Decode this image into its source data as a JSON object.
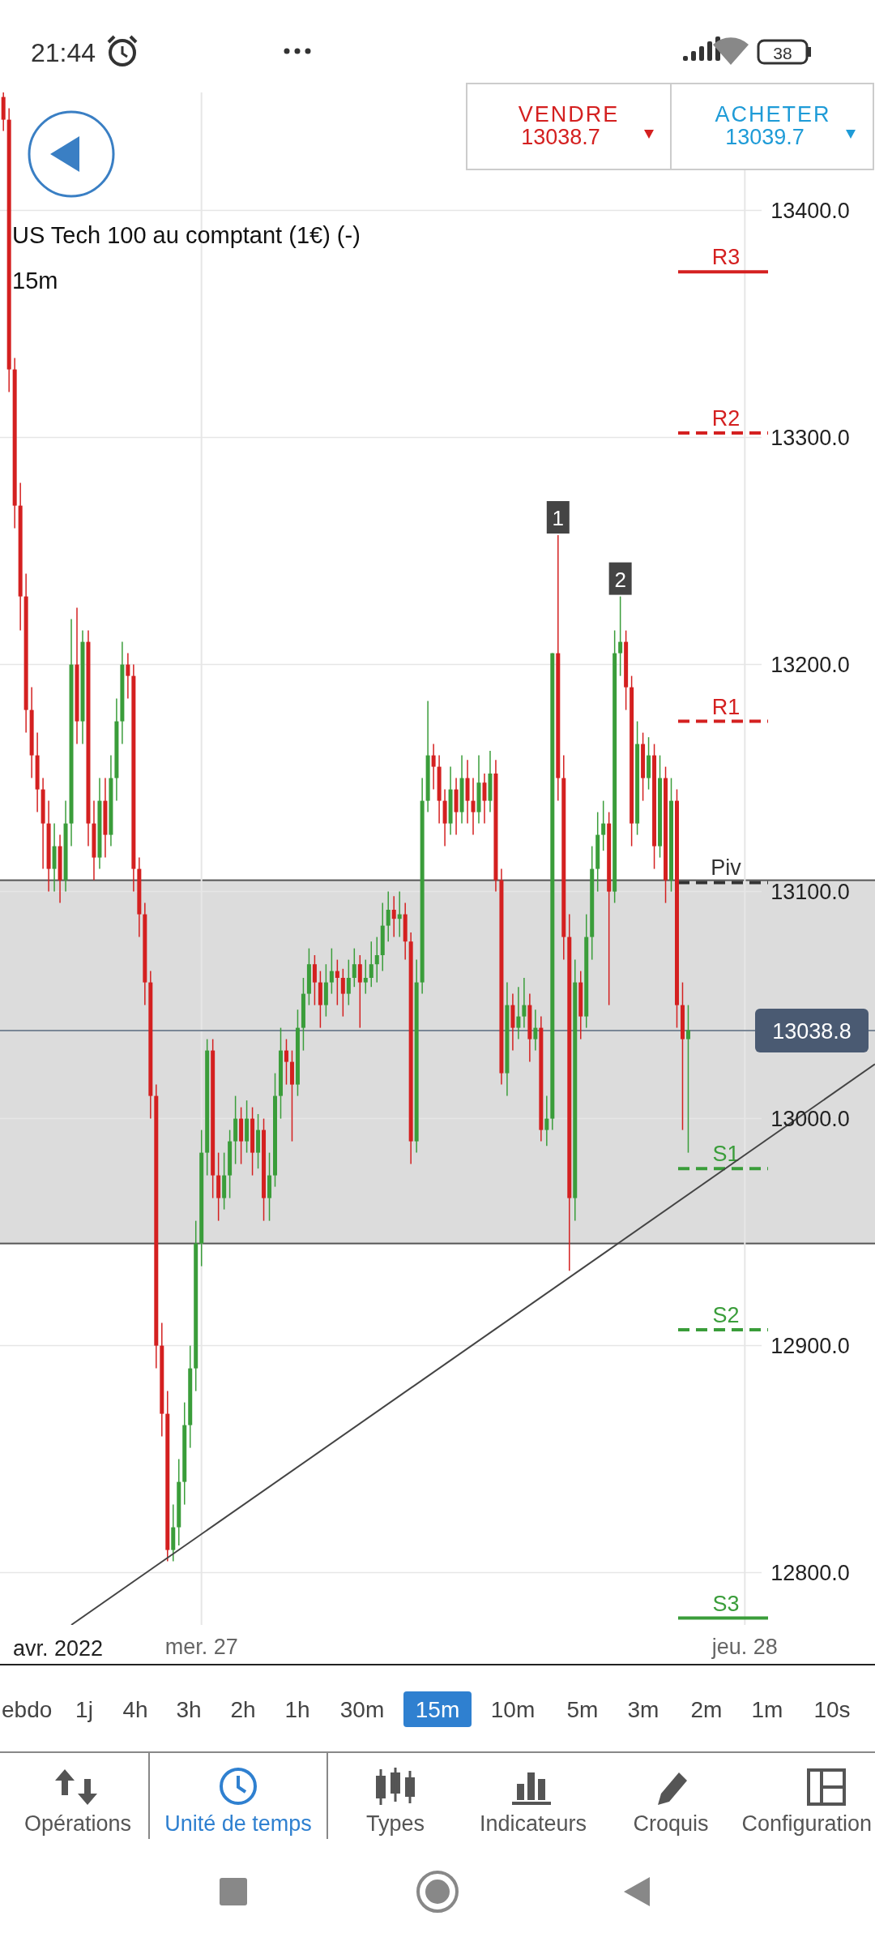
{
  "chart_data": {
    "type": "candlestick",
    "title": "US Tech 100 au comptant (1€) (-)",
    "subtitle": "15m",
    "x": [
      "2022-04-26T15:15",
      "2022-04-26T15:30",
      "2022-04-26T15:45",
      "2022-04-26T16:00",
      "2022-04-26T16:15",
      "2022-04-26T16:30",
      "2022-04-26T16:45",
      "2022-04-26T17:00",
      "2022-04-26T17:15",
      "2022-04-26T17:30",
      "2022-04-26T17:45",
      "2022-04-26T18:00",
      "2022-04-26T18:15",
      "2022-04-26T18:30",
      "2022-04-26T18:45",
      "2022-04-26T19:00",
      "2022-04-26T19:15",
      "2022-04-26T19:30",
      "2022-04-26T19:45",
      "2022-04-26T20:00",
      "2022-04-26T20:15",
      "2022-04-26T20:30",
      "2022-04-26T20:45",
      "2022-04-26T21:00",
      "2022-04-26T21:15",
      "2022-04-26T21:30",
      "2022-04-26T21:45",
      "2022-04-26T22:00",
      "2022-04-26T22:15",
      "2022-04-26T22:30",
      "2022-04-26T22:45",
      "2022-04-26T23:00",
      "2022-04-26T23:15",
      "2022-04-26T23:30",
      "2022-04-26T23:45",
      "2022-04-27T00:00",
      "2022-04-27T00:15",
      "2022-04-27T00:30",
      "2022-04-27T00:45",
      "2022-04-27T01:00",
      "2022-04-27T01:15",
      "2022-04-27T01:30",
      "2022-04-27T01:45",
      "2022-04-27T02:00",
      "2022-04-27T02:15",
      "2022-04-27T02:30",
      "2022-04-27T02:45",
      "2022-04-27T03:00",
      "2022-04-27T03:15",
      "2022-04-27T03:30",
      "2022-04-27T03:45",
      "2022-04-27T04:00",
      "2022-04-27T04:15",
      "2022-04-27T04:30",
      "2022-04-27T04:45",
      "2022-04-27T05:00",
      "2022-04-27T05:15",
      "2022-04-27T05:30",
      "2022-04-27T05:45",
      "2022-04-27T06:00",
      "2022-04-27T06:15",
      "2022-04-27T06:30",
      "2022-04-27T06:45",
      "2022-04-27T07:00",
      "2022-04-27T07:15",
      "2022-04-27T07:30",
      "2022-04-27T07:45",
      "2022-04-27T08:00",
      "2022-04-27T08:15",
      "2022-04-27T08:30",
      "2022-04-27T08:45",
      "2022-04-27T09:00",
      "2022-04-27T09:15",
      "2022-04-27T09:30",
      "2022-04-27T09:45",
      "2022-04-27T10:00",
      "2022-04-27T10:15",
      "2022-04-27T10:30",
      "2022-04-27T10:45",
      "2022-04-27T11:00",
      "2022-04-27T11:15",
      "2022-04-27T11:30",
      "2022-04-27T11:45",
      "2022-04-27T12:00",
      "2022-04-27T12:15",
      "2022-04-27T12:30",
      "2022-04-27T12:45",
      "2022-04-27T13:00",
      "2022-04-27T13:15",
      "2022-04-27T13:30",
      "2022-04-27T13:45",
      "2022-04-27T14:00",
      "2022-04-27T14:15",
      "2022-04-27T14:30",
      "2022-04-27T14:45",
      "2022-04-27T15:00",
      "2022-04-27T15:15",
      "2022-04-27T15:30",
      "2022-04-27T15:45",
      "2022-04-27T16:00",
      "2022-04-27T16:15",
      "2022-04-27T16:30",
      "2022-04-27T16:45",
      "2022-04-27T17:00",
      "2022-04-27T17:15",
      "2022-04-27T17:30",
      "2022-04-27T17:45",
      "2022-04-27T18:00",
      "2022-04-27T18:15",
      "2022-04-27T18:30",
      "2022-04-27T18:45",
      "2022-04-27T19:00",
      "2022-04-27T19:15",
      "2022-04-27T19:30",
      "2022-04-27T19:45",
      "2022-04-27T20:00",
      "2022-04-27T20:15",
      "2022-04-27T20:30",
      "2022-04-27T20:45",
      "2022-04-27T21:00",
      "2022-04-27T21:15",
      "2022-04-27T21:30"
    ],
    "ohlc": [
      [
        13450,
        13452,
        13435,
        13440
      ],
      [
        13440,
        13445,
        13320,
        13330
      ],
      [
        13330,
        13335,
        13260,
        13270
      ],
      [
        13270,
        13280,
        13215,
        13230
      ],
      [
        13230,
        13240,
        13170,
        13180
      ],
      [
        13180,
        13190,
        13150,
        13160
      ],
      [
        13160,
        13170,
        13135,
        13145
      ],
      [
        13145,
        13150,
        13110,
        13130
      ],
      [
        13130,
        13140,
        13100,
        13110
      ],
      [
        13110,
        13130,
        13100,
        13120
      ],
      [
        13120,
        13125,
        13095,
        13105
      ],
      [
        13105,
        13140,
        13100,
        13130
      ],
      [
        13130,
        13220,
        13120,
        13200
      ],
      [
        13200,
        13225,
        13165,
        13175
      ],
      [
        13175,
        13215,
        13165,
        13210
      ],
      [
        13210,
        13215,
        13120,
        13130
      ],
      [
        13130,
        13140,
        13105,
        13115
      ],
      [
        13115,
        13150,
        13110,
        13140
      ],
      [
        13140,
        13150,
        13115,
        13125
      ],
      [
        13125,
        13160,
        13120,
        13150
      ],
      [
        13150,
        13185,
        13140,
        13175
      ],
      [
        13175,
        13210,
        13165,
        13200
      ],
      [
        13200,
        13205,
        13185,
        13195
      ],
      [
        13195,
        13200,
        13100,
        13110
      ],
      [
        13110,
        13115,
        13080,
        13090
      ],
      [
        13090,
        13095,
        13050,
        13060
      ],
      [
        13060,
        13065,
        13000,
        13010
      ],
      [
        13010,
        13015,
        12890,
        12900
      ],
      [
        12900,
        12910,
        12860,
        12870
      ],
      [
        12870,
        12880,
        12805,
        12810
      ],
      [
        12810,
        12830,
        12805,
        12820
      ],
      [
        12820,
        12850,
        12812,
        12840
      ],
      [
        12840,
        12875,
        12830,
        12865
      ],
      [
        12865,
        12900,
        12855,
        12890
      ],
      [
        12890,
        12955,
        12880,
        12945
      ],
      [
        12945,
        12995,
        12935,
        12985
      ],
      [
        12985,
        13035,
        12975,
        13030
      ],
      [
        13030,
        13035,
        12965,
        12975
      ],
      [
        12975,
        12985,
        12955,
        12965
      ],
      [
        12965,
        12985,
        12960,
        12975
      ],
      [
        12975,
        12995,
        12965,
        12990
      ],
      [
        12990,
        13010,
        12980,
        13000
      ],
      [
        13000,
        13005,
        12980,
        12990
      ],
      [
        12990,
        13008,
        12985,
        13000
      ],
      [
        13000,
        13005,
        12975,
        12985
      ],
      [
        12985,
        13002,
        12978,
        12995
      ],
      [
        12995,
        13000,
        12955,
        12965
      ],
      [
        12965,
        12985,
        12955,
        12975
      ],
      [
        12975,
        13020,
        12970,
        13010
      ],
      [
        13010,
        13040,
        13000,
        13030
      ],
      [
        13030,
        13035,
        13015,
        13025
      ],
      [
        13025,
        13030,
        12990,
        13015
      ],
      [
        13015,
        13048,
        13010,
        13040
      ],
      [
        13040,
        13062,
        13030,
        13055
      ],
      [
        13055,
        13075,
        13050,
        13068
      ],
      [
        13068,
        13072,
        13050,
        13060
      ],
      [
        13060,
        13065,
        13040,
        13050
      ],
      [
        13050,
        13068,
        13045,
        13060
      ],
      [
        13060,
        13075,
        13055,
        13065
      ],
      [
        13065,
        13070,
        13050,
        13062
      ],
      [
        13062,
        13066,
        13045,
        13055
      ],
      [
        13055,
        13070,
        13050,
        13062
      ],
      [
        13062,
        13075,
        13058,
        13068
      ],
      [
        13068,
        13072,
        13040,
        13060
      ],
      [
        13060,
        13070,
        13055,
        13062
      ],
      [
        13062,
        13078,
        13058,
        13068
      ],
      [
        13068,
        13080,
        13060,
        13072
      ],
      [
        13072,
        13095,
        13065,
        13085
      ],
      [
        13085,
        13100,
        13078,
        13092
      ],
      [
        13092,
        13098,
        13080,
        13088
      ],
      [
        13088,
        13100,
        13080,
        13090
      ],
      [
        13090,
        13095,
        13070,
        13078
      ],
      [
        13078,
        13082,
        12980,
        12990
      ],
      [
        12990,
        13070,
        12985,
        13060
      ],
      [
        13060,
        13150,
        13055,
        13140
      ],
      [
        13140,
        13184,
        13135,
        13160
      ],
      [
        13160,
        13165,
        13145,
        13155
      ],
      [
        13155,
        13160,
        13130,
        13140
      ],
      [
        13140,
        13145,
        13120,
        13130
      ],
      [
        13130,
        13155,
        13125,
        13145
      ],
      [
        13145,
        13150,
        13125,
        13135
      ],
      [
        13135,
        13160,
        13130,
        13150
      ],
      [
        13150,
        13158,
        13130,
        13140
      ],
      [
        13140,
        13150,
        13125,
        13135
      ],
      [
        13135,
        13160,
        13130,
        13148
      ],
      [
        13148,
        13152,
        13130,
        13140
      ],
      [
        13140,
        13162,
        13135,
        13152
      ],
      [
        13152,
        13158,
        13100,
        13105
      ],
      [
        13105,
        13110,
        13015,
        13020
      ],
      [
        13020,
        13060,
        13010,
        13050
      ],
      [
        13050,
        13055,
        13030,
        13040
      ],
      [
        13040,
        13058,
        13035,
        13045
      ],
      [
        13045,
        13062,
        13040,
        13050
      ],
      [
        13050,
        13055,
        13025,
        13035
      ],
      [
        13035,
        13048,
        13030,
        13040
      ],
      [
        13040,
        13045,
        12990,
        12995
      ],
      [
        12995,
        13010,
        12988,
        13000
      ],
      [
        13000,
        13205,
        12995,
        13205
      ],
      [
        13205,
        13257,
        13140,
        13150
      ],
      [
        13150,
        13160,
        13070,
        13080
      ],
      [
        13080,
        13090,
        12933,
        12965
      ],
      [
        12965,
        13070,
        12955,
        13060
      ],
      [
        13060,
        13065,
        13035,
        13045
      ],
      [
        13045,
        13090,
        13040,
        13080
      ],
      [
        13080,
        13120,
        13070,
        13110
      ],
      [
        13110,
        13135,
        13100,
        13125
      ],
      [
        13125,
        13140,
        13118,
        13130
      ],
      [
        13130,
        13135,
        13050,
        13100
      ],
      [
        13100,
        13215,
        13095,
        13205
      ],
      [
        13205,
        13230,
        13195,
        13210
      ],
      [
        13210,
        13215,
        13180,
        13190
      ],
      [
        13190,
        13195,
        13120,
        13130
      ],
      [
        13130,
        13175,
        13125,
        13165
      ],
      [
        13165,
        13170,
        13140,
        13150
      ],
      [
        13150,
        13168,
        13145,
        13160
      ],
      [
        13160,
        13165,
        13110,
        13120
      ],
      [
        13120,
        13160,
        13115,
        13150
      ],
      [
        13150,
        13155,
        13095,
        13105
      ],
      [
        13105,
        13150,
        13100,
        13140
      ],
      [
        13140,
        13145,
        13040,
        13050
      ],
      [
        13050,
        13060,
        12995,
        13035
      ],
      [
        13035,
        13050,
        12985,
        13039
      ]
    ],
    "series": [
      {
        "type": "line",
        "x": [
          "2022-04-26T18:15",
          "2022-04-28T05:45"
        ],
        "values": [
          12777,
          13024
        ],
        "color": "#444444"
      }
    ],
    "xlim": [
      "2022-04-26T15:06",
      "2022-04-28T05:45"
    ],
    "ylim": [
      12777,
      13452
    ],
    "xticks": [
      {
        "value": "2022-04-27T00:00",
        "label": "mer. 27"
      },
      {
        "value": "2022-04-28T00:00",
        "label": "jeu. 28"
      }
    ],
    "yticks": [
      {
        "value": 12800,
        "label": "12800.0"
      },
      {
        "value": 12900,
        "label": "12900.0"
      },
      {
        "value": 13000,
        "label": "13000.0"
      },
      {
        "value": 13100,
        "label": "13100.0"
      },
      {
        "value": 13200,
        "label": "13200.0"
      },
      {
        "value": 13300,
        "label": "13300.0"
      },
      {
        "value": 13400,
        "label": "13400.0"
      }
    ],
    "grid": true,
    "bands": [
      {
        "axis": "y",
        "from": 12945,
        "to": 13105,
        "color": "#dcdcdc"
      }
    ],
    "ref_lines": [
      {
        "axis": "y",
        "value": 13038.8,
        "label": "13038.8",
        "color": "#7a8796",
        "line_style": "solid"
      },
      {
        "axis": "y",
        "value": 13373,
        "label": "R3",
        "color": "#d42020",
        "line_style": "solid"
      },
      {
        "axis": "y",
        "value": 13302,
        "label": "R2",
        "color": "#d42020",
        "line_style": "dashed"
      },
      {
        "axis": "y",
        "value": 13175,
        "label": "R1",
        "color": "#d42020",
        "line_style": "dashed"
      },
      {
        "axis": "y",
        "value": 13104,
        "label": "Piv",
        "color": "#333333",
        "line_style": "dashed"
      },
      {
        "axis": "y",
        "value": 12978,
        "label": "S1",
        "color": "#3a9d3a",
        "line_style": "dashed"
      },
      {
        "axis": "y",
        "value": 12907,
        "label": "S2",
        "color": "#3a9d3a",
        "line_style": "dashed"
      },
      {
        "axis": "y",
        "value": 12780,
        "label": "S3",
        "color": "#3a9d3a",
        "line_style": "solid"
      }
    ],
    "annotations": [
      "21:44",
      "38",
      "VENDRE",
      "13038.7",
      "ACHETER",
      "13039.7",
      "avr. 2022",
      "ebdo",
      "1j",
      "4h",
      "3h",
      "2h",
      "1h",
      "30m",
      "15m",
      "10m",
      "5m",
      "3m",
      "2m",
      "1m",
      "10s",
      "Opérations",
      "Unité de temps",
      "Types",
      "Indicateurs",
      "Croquis",
      "Configuration",
      {
        "text": "1",
        "x": "2022-04-27T15:45",
        "y": 13257
      },
      {
        "text": "2",
        "x": "2022-04-27T18:30",
        "y": 13230
      }
    ]
  }
}
